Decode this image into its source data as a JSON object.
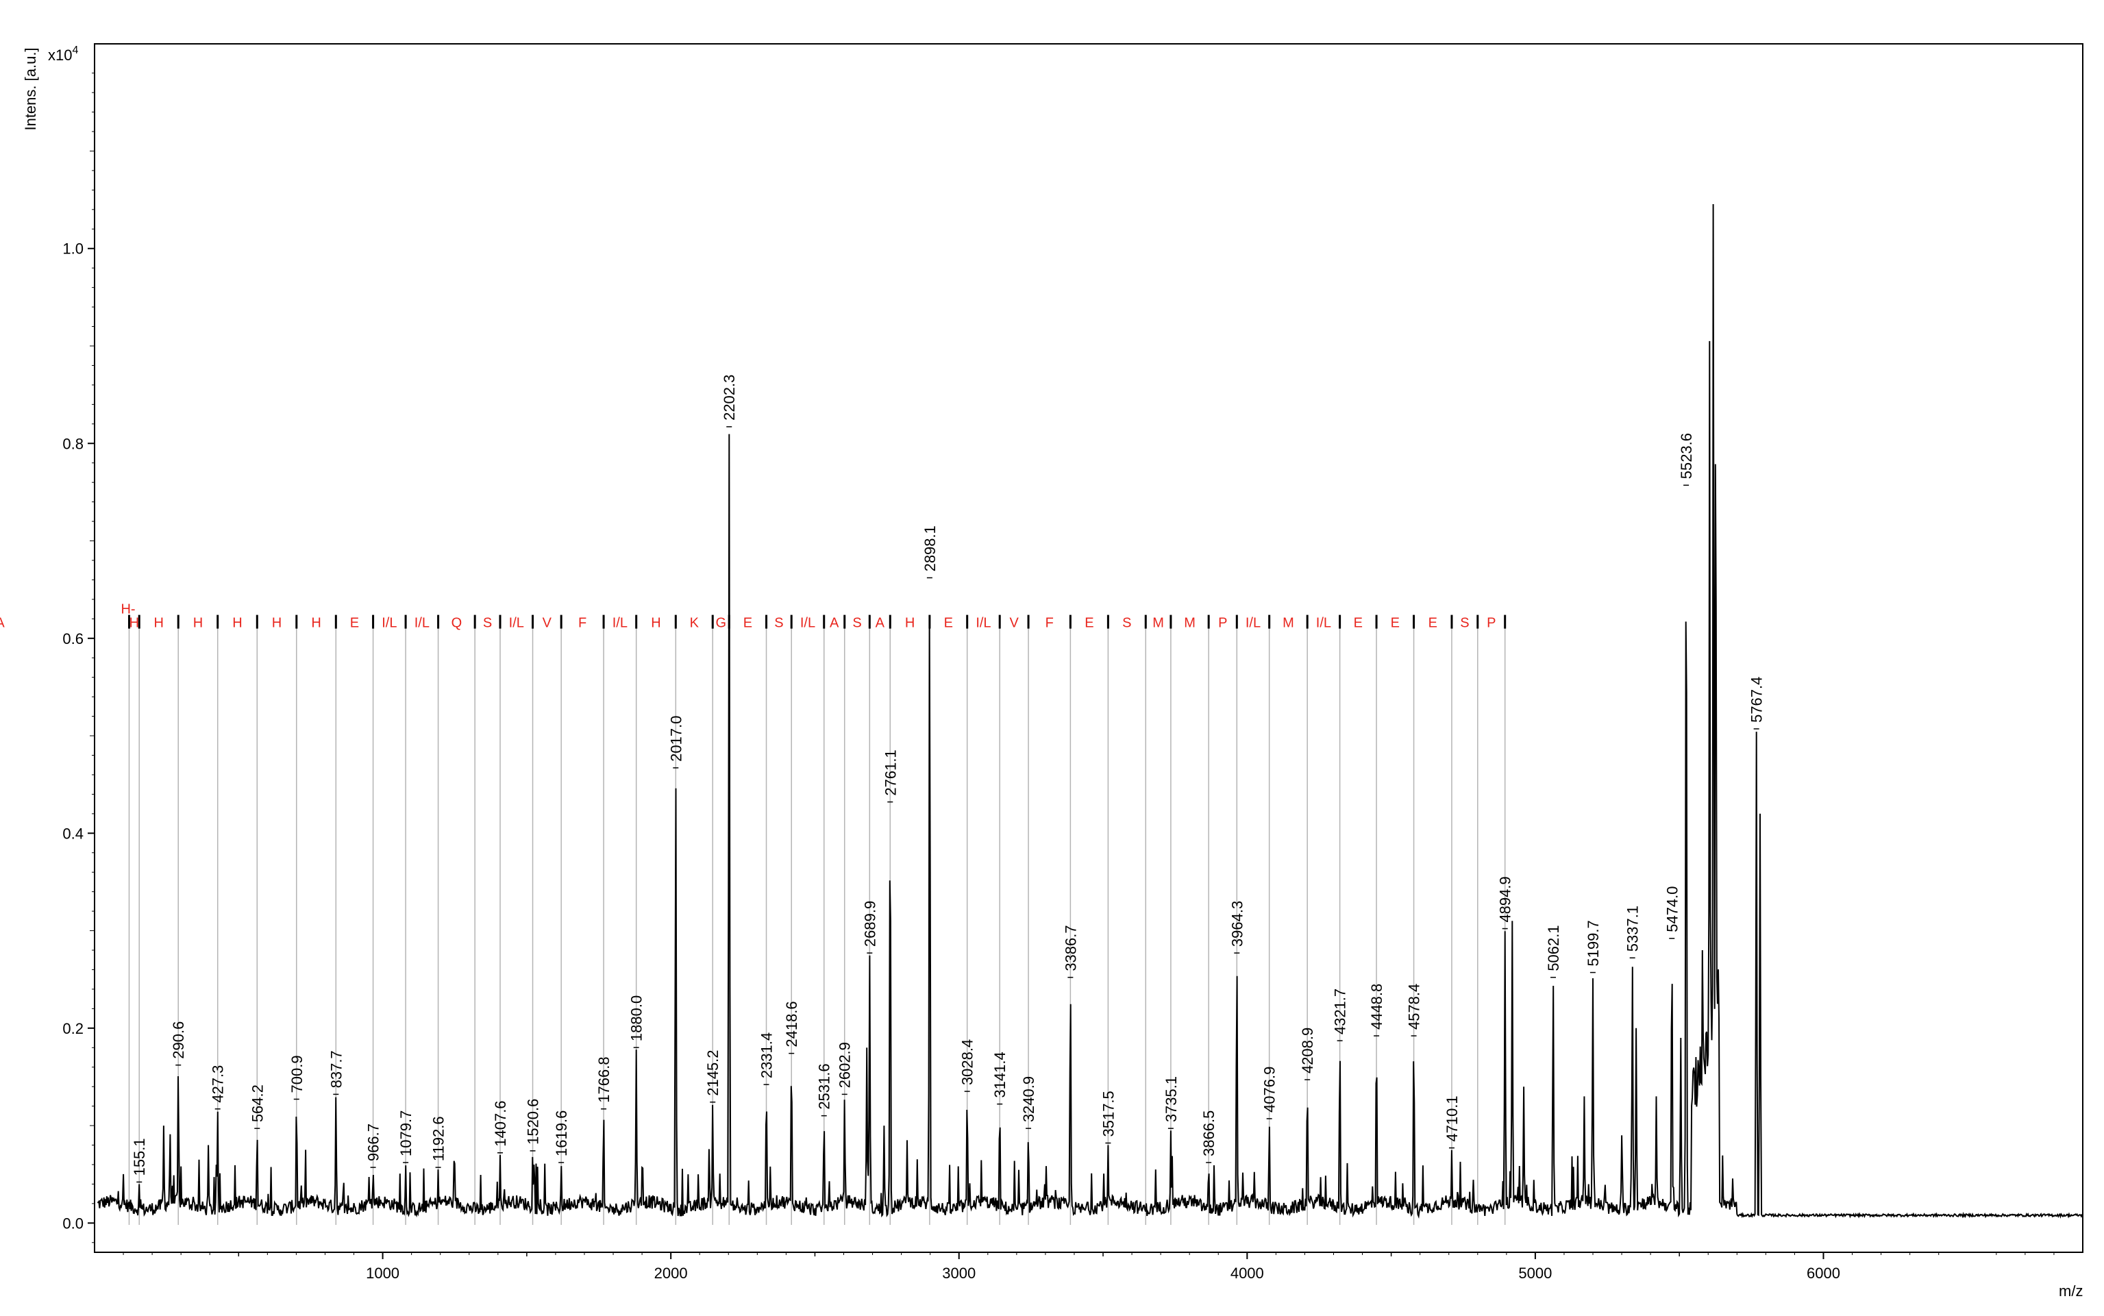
{
  "chart_data": {
    "type": "line",
    "title": "",
    "xlabel": "m/z",
    "ylabel": "Intens. [a.u.]",
    "y_multiplier_label": "x10",
    "y_multiplier_exponent": "4",
    "xlim": [
      0,
      6900
    ],
    "ylim": [
      -0.03,
      1.21
    ],
    "grid": false,
    "x_ticks": [
      1000,
      2000,
      3000,
      4000,
      5000,
      6000
    ],
    "x_tick_labels": [
      "1000",
      "2000",
      "3000",
      "4000",
      "5000",
      "6000"
    ],
    "y_ticks": [
      0.0,
      0.2,
      0.4,
      0.6,
      0.8,
      1.0
    ],
    "y_tick_labels": [
      "0.0",
      "0.2",
      "0.4",
      "0.6",
      "0.8",
      "1.0"
    ],
    "baseline": 0.012,
    "peaks": [
      {
        "x": 155.1,
        "y": 0.04,
        "label": "155.1"
      },
      {
        "x": 290.6,
        "y": 0.16,
        "label": "290.6"
      },
      {
        "x": 427.3,
        "y": 0.115,
        "label": "427.3"
      },
      {
        "x": 564.2,
        "y": 0.095,
        "label": "564.2"
      },
      {
        "x": 700.9,
        "y": 0.125,
        "label": "700.9"
      },
      {
        "x": 837.7,
        "y": 0.13,
        "label": "837.7"
      },
      {
        "x": 966.7,
        "y": 0.055,
        "label": "966.7"
      },
      {
        "x": 1079.7,
        "y": 0.06,
        "label": "1079.7"
      },
      {
        "x": 1192.6,
        "y": 0.055,
        "label": "1192.6"
      },
      {
        "x": 1407.6,
        "y": 0.07,
        "label": "1407.6"
      },
      {
        "x": 1520.6,
        "y": 0.072,
        "label": "1520.6"
      },
      {
        "x": 1619.6,
        "y": 0.06,
        "label": "1619.6"
      },
      {
        "x": 1766.8,
        "y": 0.115,
        "label": "1766.8"
      },
      {
        "x": 1880.0,
        "y": 0.178,
        "label": "1880.0"
      },
      {
        "x": 2017.0,
        "y": 0.465,
        "label": "2017.0"
      },
      {
        "x": 2145.2,
        "y": 0.122,
        "label": "2145.2"
      },
      {
        "x": 2202.3,
        "y": 0.815,
        "label": "2202.3"
      },
      {
        "x": 2331.4,
        "y": 0.14,
        "label": "2331.4"
      },
      {
        "x": 2418.6,
        "y": 0.172,
        "label": "2418.6"
      },
      {
        "x": 2531.6,
        "y": 0.108,
        "label": "2531.6"
      },
      {
        "x": 2602.9,
        "y": 0.13,
        "label": "2602.9"
      },
      {
        "x": 2689.9,
        "y": 0.275,
        "label": "2689.9"
      },
      {
        "x": 2761.1,
        "y": 0.43,
        "label": "2761.1"
      },
      {
        "x": 2898.1,
        "y": 0.66,
        "label": "2898.1"
      },
      {
        "x": 3028.4,
        "y": 0.133,
        "label": "3028.4"
      },
      {
        "x": 3141.4,
        "y": 0.12,
        "label": "3141.4"
      },
      {
        "x": 3240.9,
        "y": 0.095,
        "label": "3240.9"
      },
      {
        "x": 3386.7,
        "y": 0.25,
        "label": "3386.7"
      },
      {
        "x": 3517.5,
        "y": 0.08,
        "label": "3517.5"
      },
      {
        "x": 3735.1,
        "y": 0.095,
        "label": "3735.1"
      },
      {
        "x": 3866.5,
        "y": 0.06,
        "label": "3866.5"
      },
      {
        "x": 3964.3,
        "y": 0.275,
        "label": "3964.3"
      },
      {
        "x": 4076.9,
        "y": 0.105,
        "label": "4076.9"
      },
      {
        "x": 4208.9,
        "y": 0.145,
        "label": "4208.9"
      },
      {
        "x": 4321.7,
        "y": 0.185,
        "label": "4321.7"
      },
      {
        "x": 4448.8,
        "y": 0.19,
        "label": "4448.8"
      },
      {
        "x": 4578.4,
        "y": 0.19,
        "label": "4578.4"
      },
      {
        "x": 4710.1,
        "y": 0.075,
        "label": "4710.1"
      },
      {
        "x": 4894.9,
        "y": 0.3,
        "label": "4894.9"
      },
      {
        "x": 5062.1,
        "y": 0.25,
        "label": "5062.1"
      },
      {
        "x": 5199.7,
        "y": 0.255,
        "label": "5199.7"
      },
      {
        "x": 5337.1,
        "y": 0.27,
        "label": "5337.1"
      },
      {
        "x": 5474.0,
        "y": 0.29,
        "label": "5474.0"
      },
      {
        "x": 5523.6,
        "y": 0.755,
        "label": "5523.6"
      },
      {
        "x": 5767.4,
        "y": 0.505,
        "label": "5767.4"
      }
    ],
    "unlabeled_peaks": [
      {
        "x": 240,
        "y": 0.1
      },
      {
        "x": 262,
        "y": 0.095
      },
      {
        "x": 395,
        "y": 0.08
      },
      {
        "x": 2060,
        "y": 0.05
      },
      {
        "x": 2680,
        "y": 0.18
      },
      {
        "x": 2740,
        "y": 0.1
      },
      {
        "x": 2820,
        "y": 0.085
      },
      {
        "x": 4920,
        "y": 0.31
      },
      {
        "x": 4960,
        "y": 0.14
      },
      {
        "x": 5170,
        "y": 0.13
      },
      {
        "x": 5300,
        "y": 0.09
      },
      {
        "x": 5350,
        "y": 0.2
      },
      {
        "x": 5420,
        "y": 0.13
      },
      {
        "x": 5505,
        "y": 0.19
      },
      {
        "x": 5580,
        "y": 0.28
      },
      {
        "x": 5605,
        "y": 0.905
      },
      {
        "x": 5618,
        "y": 1.09
      },
      {
        "x": 5626,
        "y": 0.92
      },
      {
        "x": 5780,
        "y": 0.42
      }
    ],
    "sequence_annotation": {
      "color": "#e8241c",
      "line_level": 0.617,
      "start_label": "H-",
      "start_x": 120,
      "markers": [
        120,
        155.1,
        290.6,
        427.3,
        564.2,
        700.9,
        837.7,
        966.7,
        1079.7,
        1192.6,
        1320,
        1407.6,
        1520.6,
        1619.6,
        1766.8,
        1880.0,
        2017.0,
        2145.2,
        2202.3,
        2331.4,
        2418.6,
        2531.6,
        2602.9,
        2689.9,
        2761.1,
        2898.1,
        3028.4,
        3141.4,
        3240.9,
        3386.7,
        3517.5,
        3648,
        3735.1,
        3866.5,
        3964.3,
        4076.9,
        4208.9,
        4321.7,
        4448.8,
        4578.4,
        4710.1,
        4800,
        4894.9
      ],
      "residues": [
        "H",
        "H",
        "H",
        "H",
        "H",
        "H",
        "E",
        "I/L",
        "I/L",
        "Q",
        "S",
        "I/L",
        "V",
        "F",
        "I/L",
        "H",
        "K",
        "G",
        "E",
        "S",
        "I/L",
        "A",
        "S",
        "A",
        "H",
        "E",
        "I/L",
        "V",
        "F",
        "E",
        "S",
        "M",
        "M",
        "P",
        "I/L",
        "M",
        "I/L",
        "E",
        "E",
        "E",
        "S",
        "P",
        "A"
      ]
    }
  }
}
